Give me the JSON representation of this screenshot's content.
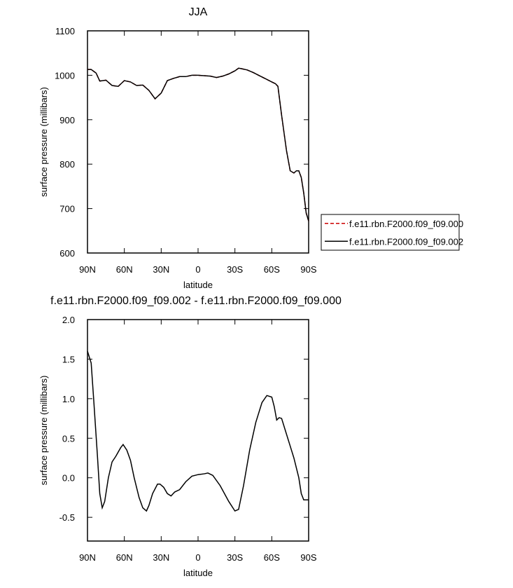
{
  "chart_data": [
    {
      "type": "line",
      "title": "JJA",
      "xlabel": "latitude",
      "ylabel": "surface pressure (millibars)",
      "x": [
        90,
        87,
        83,
        80,
        75,
        70,
        65,
        60,
        55,
        50,
        45,
        40,
        35,
        30,
        25,
        20,
        15,
        10,
        5,
        0,
        -5,
        -10,
        -15,
        -20,
        -25,
        -30,
        -33,
        -35,
        -40,
        -45,
        -50,
        -55,
        -60,
        -63,
        -65,
        -68,
        -72,
        -75,
        -78,
        -80,
        -82,
        -84,
        -86,
        -88,
        -90
      ],
      "series": [
        {
          "name": "f.e11.rbn.F2000.f09_f09.000",
          "color": "#cc0000",
          "dashed": true,
          "values": [
            1013,
            1013,
            1005,
            987,
            989,
            977,
            975,
            988,
            985,
            977,
            978,
            966,
            947,
            960,
            988,
            993,
            997,
            997,
            1000,
            1000,
            999,
            998,
            995,
            998,
            1003,
            1010,
            1016,
            1015,
            1012,
            1006,
            999,
            992,
            985,
            981,
            975,
            910,
            830,
            785,
            780,
            785,
            785,
            770,
            735,
            690,
            672
          ]
        },
        {
          "name": "f.e11.rbn.F2000.f09_f09.002",
          "color": "#000000",
          "dashed": false,
          "values": [
            1013,
            1013,
            1005,
            987,
            989,
            977,
            975,
            988,
            985,
            977,
            978,
            966,
            947,
            960,
            988,
            993,
            997,
            997,
            1000,
            1000,
            999,
            998,
            995,
            998,
            1003,
            1010,
            1016,
            1015,
            1012,
            1006,
            999,
            992,
            985,
            981,
            975,
            910,
            830,
            785,
            780,
            785,
            785,
            770,
            735,
            690,
            672
          ]
        }
      ],
      "xlim": [
        90,
        -90
      ],
      "xticks": [
        {
          "value": 90,
          "label": "90N"
        },
        {
          "value": 60,
          "label": "60N"
        },
        {
          "value": 30,
          "label": "30N"
        },
        0,
        {
          "value": -30,
          "label": "30S"
        },
        {
          "value": -60,
          "label": "60S"
        },
        {
          "value": -90,
          "label": "90S"
        }
      ],
      "ylim": [
        600,
        1100
      ],
      "yticks": [
        600,
        700,
        800,
        900,
        1000,
        1100
      ],
      "legend": "right"
    },
    {
      "type": "line",
      "title": "f.e11.rbn.F2000.f09_f09.002 - f.e11.rbn.F2000.f09_f09.000",
      "xlabel": "latitude",
      "ylabel": "surface pressure (millibars)",
      "x": [
        90,
        87,
        85,
        82,
        80,
        78,
        76,
        73,
        70,
        67,
        63,
        61,
        58,
        55,
        52,
        48,
        45,
        42,
        40,
        37,
        33,
        31,
        28,
        25,
        22,
        19,
        15,
        10,
        5,
        0,
        -5,
        -8,
        -12,
        -18,
        -25,
        -30,
        -33,
        -37,
        -42,
        -47,
        -52,
        -56,
        -60,
        -62,
        -64,
        -66,
        -68,
        -71,
        -75,
        -78,
        -82,
        -84,
        -86,
        -90
      ],
      "series": [
        {
          "color": "#000000",
          "dashed": false,
          "values": [
            1.6,
            1.45,
            1.0,
            0.3,
            -0.2,
            -0.38,
            -0.3,
            0.0,
            0.2,
            0.27,
            0.38,
            0.42,
            0.35,
            0.22,
            0.0,
            -0.25,
            -0.38,
            -0.42,
            -0.35,
            -0.2,
            -0.08,
            -0.08,
            -0.12,
            -0.2,
            -0.23,
            -0.18,
            -0.15,
            -0.05,
            0.02,
            0.04,
            0.05,
            0.06,
            0.03,
            -0.1,
            -0.3,
            -0.42,
            -0.4,
            -0.1,
            0.35,
            0.7,
            0.95,
            1.04,
            1.02,
            0.9,
            0.73,
            0.76,
            0.75,
            0.6,
            0.4,
            0.25,
            0.0,
            -0.2,
            -0.28,
            -0.28
          ]
        }
      ],
      "xlim": [
        90,
        -90
      ],
      "xticks": [
        {
          "value": 90,
          "label": "90N"
        },
        {
          "value": 60,
          "label": "60N"
        },
        {
          "value": 30,
          "label": "30N"
        },
        0,
        {
          "value": -30,
          "label": "30S"
        },
        {
          "value": -60,
          "label": "60S"
        },
        {
          "value": -90,
          "label": "90S"
        }
      ],
      "ylim": [
        -0.8,
        2.0
      ],
      "yticks": [
        -0.5,
        {
          "value": 0,
          "label": "0.0"
        },
        0.5,
        {
          "value": 1,
          "label": "1.0"
        },
        1.5,
        {
          "value": 2,
          "label": "2.0"
        }
      ]
    }
  ]
}
